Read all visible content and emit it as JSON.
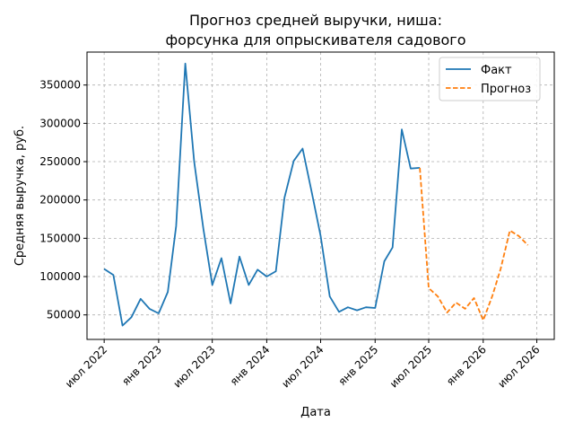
{
  "chart_data": {
    "type": "line",
    "title_line1": "Прогноз средней выручки, ниша:",
    "title_line2": "форсунка для опрыскивателя садового",
    "xlabel": "Дата",
    "ylabel": "Средняя выручка, руб.",
    "xlim": [
      "2022-05-04",
      "2026-08-29"
    ],
    "ylim": [
      18000,
      393000
    ],
    "x_ticks": [
      {
        "date": "2022-07-01",
        "label": "июл 2022"
      },
      {
        "date": "2023-01-01",
        "label": "янв 2023"
      },
      {
        "date": "2023-07-01",
        "label": "июл 2023"
      },
      {
        "date": "2024-01-01",
        "label": "янв 2024"
      },
      {
        "date": "2024-07-01",
        "label": "июл 2024"
      },
      {
        "date": "2025-01-01",
        "label": "янв 2025"
      },
      {
        "date": "2025-07-01",
        "label": "июл 2025"
      },
      {
        "date": "2026-01-01",
        "label": "янв 2026"
      },
      {
        "date": "2026-07-01",
        "label": "июл 2026"
      }
    ],
    "y_ticks": [
      50000,
      100000,
      150000,
      200000,
      250000,
      300000,
      350000
    ],
    "grid": true,
    "legend_position": "top-right",
    "series": [
      {
        "name": "Факт",
        "color": "#1f77b4",
        "style": "solid",
        "points": [
          {
            "x": "2022-07-01",
            "y": 110000
          },
          {
            "x": "2022-08-01",
            "y": 102000
          },
          {
            "x": "2022-09-01",
            "y": 36000
          },
          {
            "x": "2022-10-01",
            "y": 47000
          },
          {
            "x": "2022-11-01",
            "y": 71000
          },
          {
            "x": "2022-12-01",
            "y": 58000
          },
          {
            "x": "2023-01-01",
            "y": 52000
          },
          {
            "x": "2023-02-01",
            "y": 80000
          },
          {
            "x": "2023-03-01",
            "y": 166000
          },
          {
            "x": "2023-04-01",
            "y": 378000
          },
          {
            "x": "2023-05-01",
            "y": 250000
          },
          {
            "x": "2023-06-01",
            "y": 162000
          },
          {
            "x": "2023-07-01",
            "y": 89000
          },
          {
            "x": "2023-08-01",
            "y": 124000
          },
          {
            "x": "2023-09-01",
            "y": 65000
          },
          {
            "x": "2023-10-01",
            "y": 126000
          },
          {
            "x": "2023-11-01",
            "y": 89000
          },
          {
            "x": "2023-12-01",
            "y": 109000
          },
          {
            "x": "2024-01-01",
            "y": 100000
          },
          {
            "x": "2024-02-01",
            "y": 107000
          },
          {
            "x": "2024-03-01",
            "y": 203000
          },
          {
            "x": "2024-04-01",
            "y": 251000
          },
          {
            "x": "2024-05-01",
            "y": 267000
          },
          {
            "x": "2024-06-01",
            "y": 210000
          },
          {
            "x": "2024-07-01",
            "y": 153000
          },
          {
            "x": "2024-08-01",
            "y": 74000
          },
          {
            "x": "2024-09-01",
            "y": 54000
          },
          {
            "x": "2024-10-01",
            "y": 60000
          },
          {
            "x": "2024-11-01",
            "y": 56000
          },
          {
            "x": "2024-12-01",
            "y": 60000
          },
          {
            "x": "2025-01-01",
            "y": 59000
          },
          {
            "x": "2025-02-01",
            "y": 120000
          },
          {
            "x": "2025-03-01",
            "y": 138000
          },
          {
            "x": "2025-04-01",
            "y": 292000
          },
          {
            "x": "2025-05-01",
            "y": 241000
          },
          {
            "x": "2025-06-01",
            "y": 242000
          }
        ]
      },
      {
        "name": "Прогноз",
        "color": "#ff7f0e",
        "style": "dashed",
        "points": [
          {
            "x": "2025-06-01",
            "y": 242000
          },
          {
            "x": "2025-07-01",
            "y": 85000
          },
          {
            "x": "2025-08-01",
            "y": 74000
          },
          {
            "x": "2025-09-01",
            "y": 53000
          },
          {
            "x": "2025-10-01",
            "y": 66000
          },
          {
            "x": "2025-11-01",
            "y": 58000
          },
          {
            "x": "2025-12-01",
            "y": 72000
          },
          {
            "x": "2026-01-01",
            "y": 43000
          },
          {
            "x": "2026-02-01",
            "y": 75000
          },
          {
            "x": "2026-03-01",
            "y": 110000
          },
          {
            "x": "2026-04-01",
            "y": 160000
          },
          {
            "x": "2026-05-01",
            "y": 153000
          },
          {
            "x": "2026-06-01",
            "y": 141000
          }
        ]
      }
    ]
  }
}
